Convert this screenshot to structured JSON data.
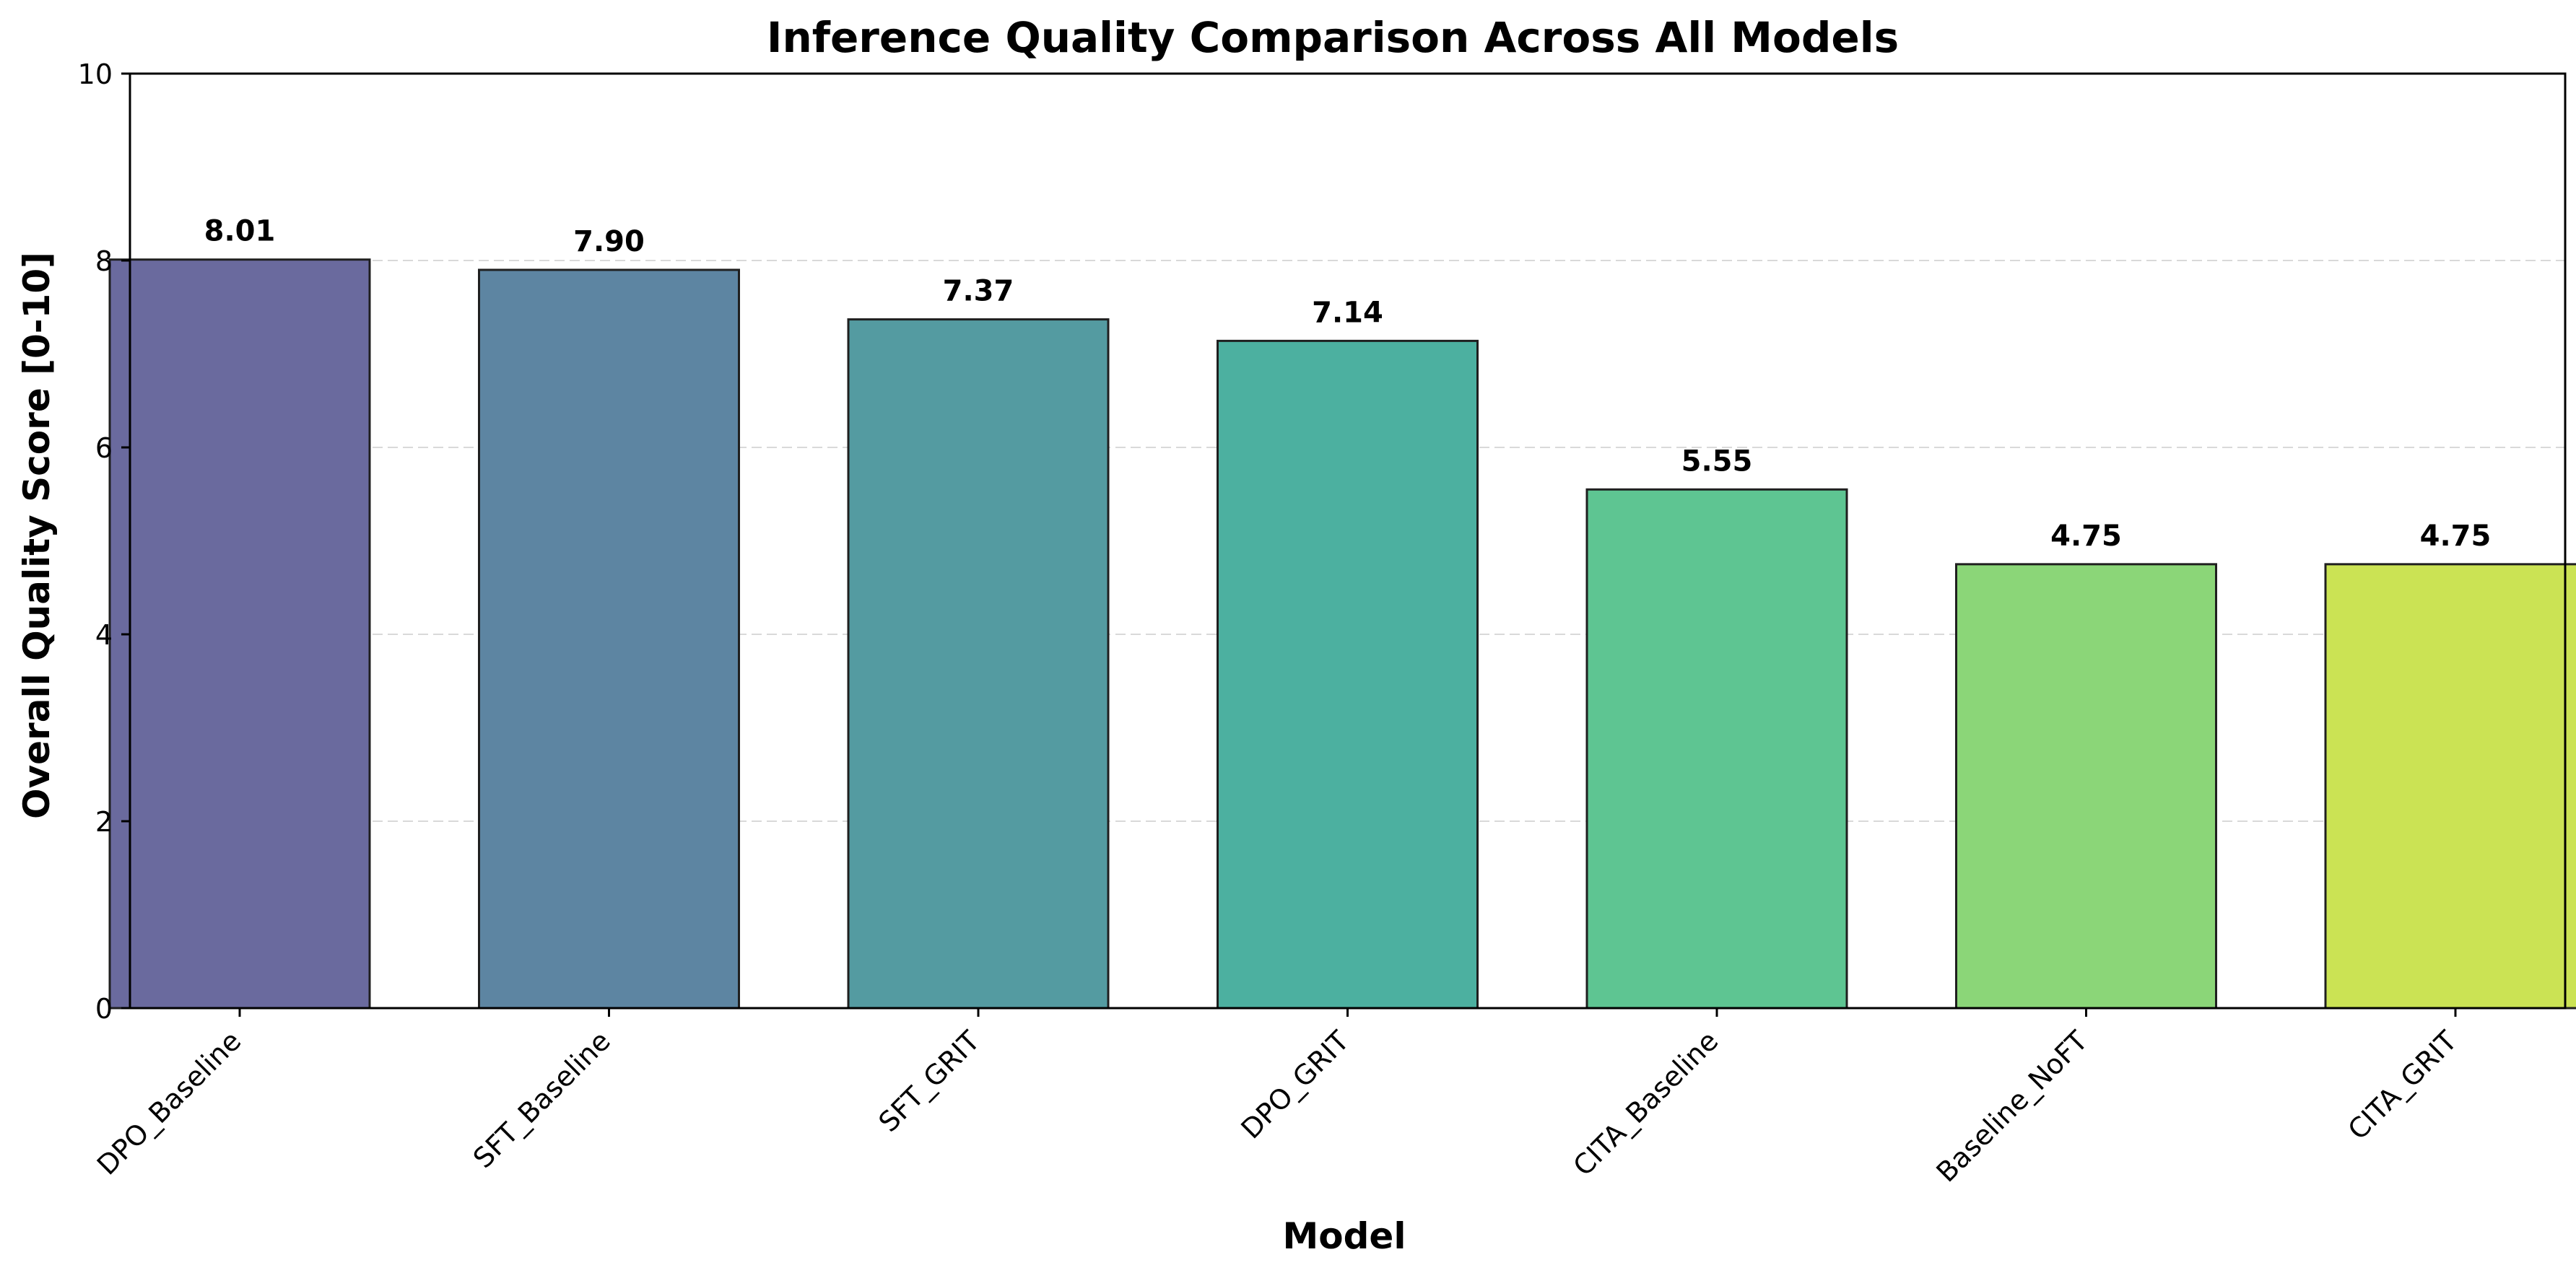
{
  "chart_data": {
    "type": "bar",
    "title": "Inference Quality Comparison Across All Models",
    "xlabel": "Model",
    "ylabel": "Overall Quality Score [0-10]",
    "categories": [
      "DPO_Baseline",
      "SFT_Baseline",
      "SFT_GRIT",
      "DPO_GRIT",
      "CITA_Baseline",
      "Baseline_NoFT",
      "CITA_GRIT"
    ],
    "values": [
      8.01,
      7.9,
      7.37,
      7.14,
      5.55,
      4.75,
      4.75
    ],
    "value_labels": [
      "8.01",
      "7.90",
      "7.37",
      "7.14",
      "5.55",
      "4.75",
      "4.75"
    ],
    "colors": [
      "#6a6a9e",
      "#5d85a2",
      "#549ba1",
      "#4cb0a0",
      "#5ec592",
      "#8bd678",
      "#cbe354"
    ],
    "ylim": [
      0,
      10
    ],
    "yticks": [
      0,
      2,
      4,
      6,
      8,
      10
    ],
    "grid": true,
    "legend": "none"
  }
}
